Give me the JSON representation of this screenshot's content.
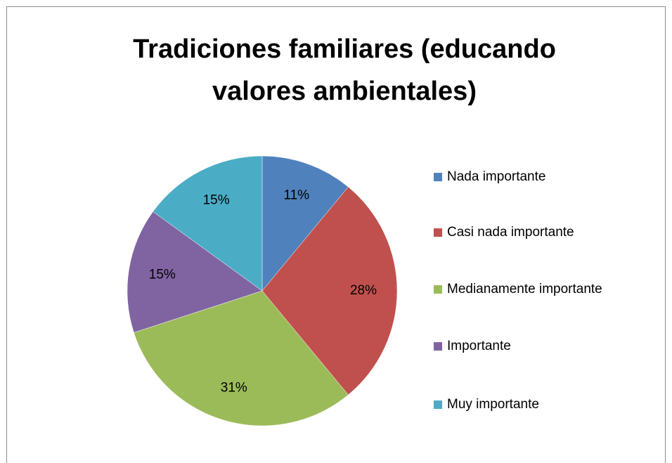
{
  "chart_data": {
    "type": "pie",
    "title": "Tradiciones familiares (educando valores ambientales)",
    "categories": [
      "Nada importante",
      "Casi nada importante",
      "Medianamente importante",
      "Importante",
      "Muy importante"
    ],
    "values": [
      11,
      28,
      31,
      15,
      15
    ],
    "value_labels": [
      "11%",
      "28%",
      "31%",
      "15%",
      "15%"
    ],
    "colors": [
      "#4f81bd",
      "#c0504d",
      "#9bbb59",
      "#8064a2",
      "#4bacc6"
    ],
    "legend": "right"
  }
}
